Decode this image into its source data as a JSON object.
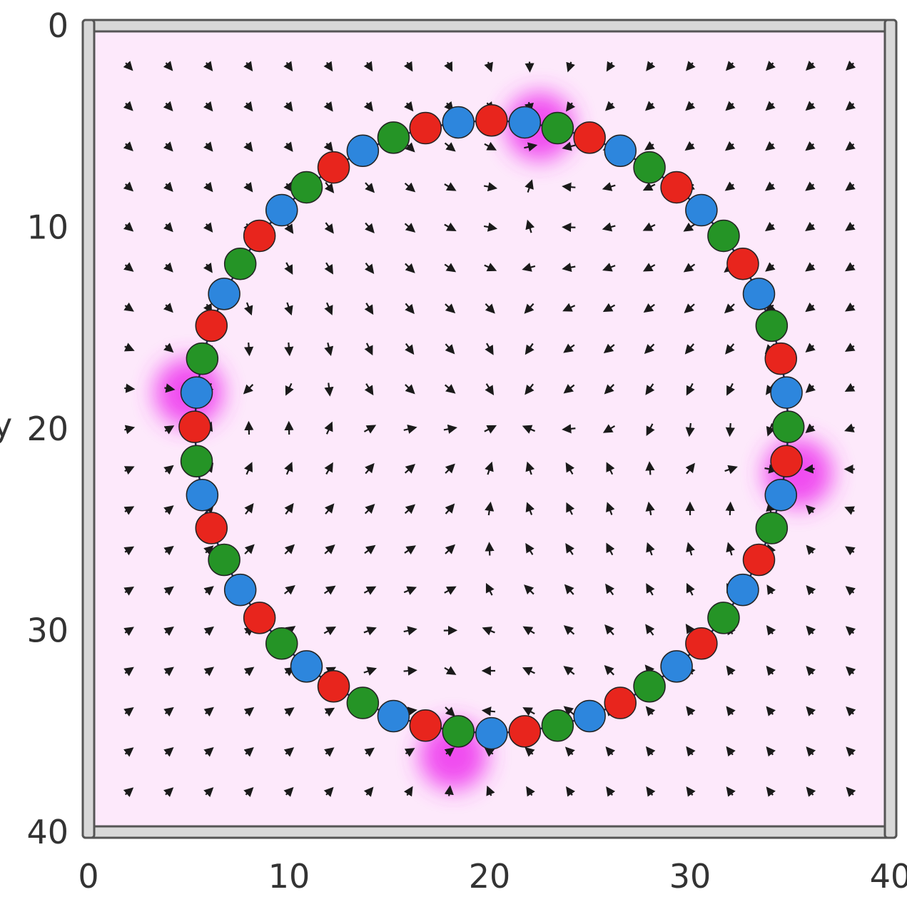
{
  "chart_data": {
    "type": "scatter",
    "title": "",
    "xlabel": "",
    "ylabel": "y",
    "xlim": [
      0,
      40
    ],
    "ylim": [
      0,
      40
    ],
    "y_inverted": true,
    "grid": false,
    "x_ticks": [
      "0",
      "10",
      "20",
      "30",
      "40"
    ],
    "y_ticks": [
      "0",
      "10",
      "20",
      "30",
      "40"
    ],
    "ring": {
      "center": [
        20.1,
        19.9
      ],
      "radius_x": 14.8,
      "radius_y": 15.2,
      "beads": 56,
      "color_sequence": [
        "red",
        "blue",
        "green"
      ],
      "bead_colors": {
        "red": "#e8251d",
        "blue": "#2d86dd",
        "green": "#259426"
      }
    },
    "defects": [
      {
        "x": 22.5,
        "y": 5.0
      },
      {
        "x": 5.0,
        "y": 18.2
      },
      {
        "x": 35.4,
        "y": 22.2
      },
      {
        "x": 18.2,
        "y": 36.2
      }
    ],
    "field": {
      "grid_min": 2,
      "grid_max": 40,
      "step": 2,
      "arrow_color": "#1a1a1a",
      "background_color": "#fde9fb",
      "defect_color": "#ee33ee"
    }
  }
}
